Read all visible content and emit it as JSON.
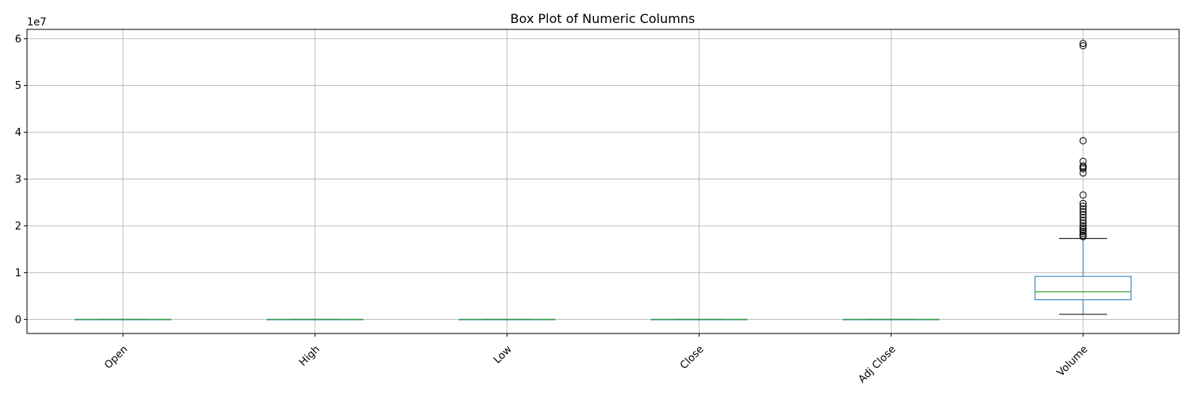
{
  "chart_data": {
    "type": "box",
    "title": "Box Plot of Numeric Columns",
    "xlabel": "",
    "ylabel": "",
    "y_scale_label": "1e7",
    "ylim": [
      -0.3,
      6.2
    ],
    "y_unit_multiplier": 10000000,
    "y_ticks": [
      0,
      1,
      2,
      3,
      4,
      5,
      6
    ],
    "y_tick_labels": [
      "0",
      "1",
      "2",
      "3",
      "4",
      "5",
      "6"
    ],
    "grid": true,
    "categories": [
      "Open",
      "High",
      "Low",
      "Close",
      "Adj Close",
      "Volume"
    ],
    "boxes": [
      {
        "name": "Open",
        "whisker_low": 0.0,
        "q1": 0.0,
        "median": 0.0,
        "q3": 0.0,
        "whisker_high": 0.0,
        "outliers": []
      },
      {
        "name": "High",
        "whisker_low": 0.0,
        "q1": 0.0,
        "median": 0.0,
        "q3": 0.0,
        "whisker_high": 0.0,
        "outliers": []
      },
      {
        "name": "Low",
        "whisker_low": 0.0,
        "q1": 0.0,
        "median": 0.0,
        "q3": 0.0,
        "whisker_high": 0.0,
        "outliers": []
      },
      {
        "name": "Close",
        "whisker_low": 0.0,
        "q1": 0.0,
        "median": 0.0,
        "q3": 0.0,
        "whisker_high": 0.0,
        "outliers": []
      },
      {
        "name": "Adj Close",
        "whisker_low": 0.0,
        "q1": 0.0,
        "median": 0.0,
        "q3": 0.0,
        "whisker_high": 0.0,
        "outliers": []
      },
      {
        "name": "Volume",
        "whisker_low": 0.11,
        "q1": 0.42,
        "median": 0.59,
        "q3": 0.92,
        "whisker_high": 1.73,
        "outliers": [
          5.9,
          5.85,
          3.82,
          3.38,
          3.28,
          3.25,
          3.22,
          3.13,
          2.66,
          2.48,
          2.42,
          2.36,
          2.3,
          2.24,
          2.18,
          2.12,
          2.06,
          2.0,
          1.96,
          1.92,
          1.88,
          1.84,
          1.8,
          1.77
        ]
      }
    ],
    "colors": {
      "box": "#1f77b4",
      "median": "#2ca02c",
      "whisker": "#1f77b4",
      "cap": "#000000",
      "grid": "#b0b0b0",
      "axis": "#000000"
    }
  }
}
